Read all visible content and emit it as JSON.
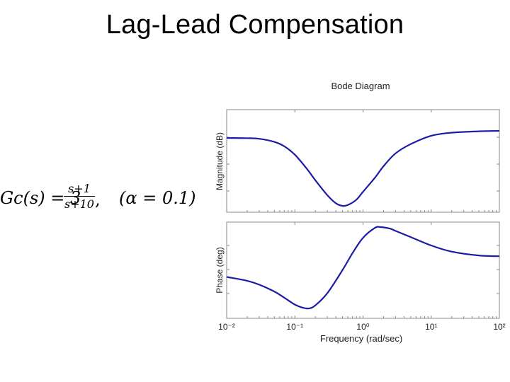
{
  "slide": {
    "title": "Lag-Lead Compensation"
  },
  "formula": {
    "lhs": "Gc(s) = 3",
    "numerator": "s+1",
    "denominator": "s+10",
    "separator": ",",
    "alpha_note": "(α = 0.1)"
  },
  "chart_data": [
    {
      "type": "line",
      "title": "Bode Diagram",
      "ylabel": "Magnitude (dB)",
      "xlabel": "",
      "x_scale": "log",
      "xlim": [
        0.01,
        100
      ],
      "grid": false,
      "series": [
        {
          "color": "#1c1ca8",
          "x": [
            0.01,
            0.02,
            0.03,
            0.05,
            0.07,
            0.1,
            0.15,
            0.2,
            0.3,
            0.4,
            0.5,
            0.6,
            0.8,
            1,
            1.5,
            2,
            3,
            5,
            10,
            20,
            50,
            100
          ],
          "y": [
            0.0,
            -0.05,
            -0.2,
            -0.9,
            -1.9,
            -3.8,
            -7.0,
            -9.6,
            -13.0,
            -14.8,
            -15.4,
            -15.2,
            -14.0,
            -12.2,
            -9.0,
            -6.4,
            -3.5,
            -1.4,
            0.5,
            1.2,
            1.5,
            1.6
          ]
        }
      ]
    },
    {
      "type": "line",
      "title": "",
      "ylabel": "Phase (deg)",
      "xlabel": "Frequency  (rad/sec)",
      "x_scale": "log",
      "xlim": [
        0.01,
        100
      ],
      "xticks": [
        "10⁻²",
        "10⁻¹",
        "10⁰",
        "10¹",
        "10²"
      ],
      "grid": false,
      "series": [
        {
          "color": "#1c1ca8",
          "x": [
            0.01,
            0.02,
            0.03,
            0.05,
            0.07,
            0.1,
            0.13,
            0.16,
            0.2,
            0.3,
            0.5,
            0.7,
            1,
            1.5,
            1.8,
            2.5,
            3,
            5,
            10,
            20,
            50,
            100
          ],
          "y": [
            -17,
            -22,
            -27,
            -36,
            -44,
            -53,
            -57,
            -58,
            -54,
            -38,
            -8,
            14,
            34,
            47,
            48,
            46,
            43,
            35,
            24,
            16,
            11,
            10
          ]
        }
      ]
    }
  ]
}
